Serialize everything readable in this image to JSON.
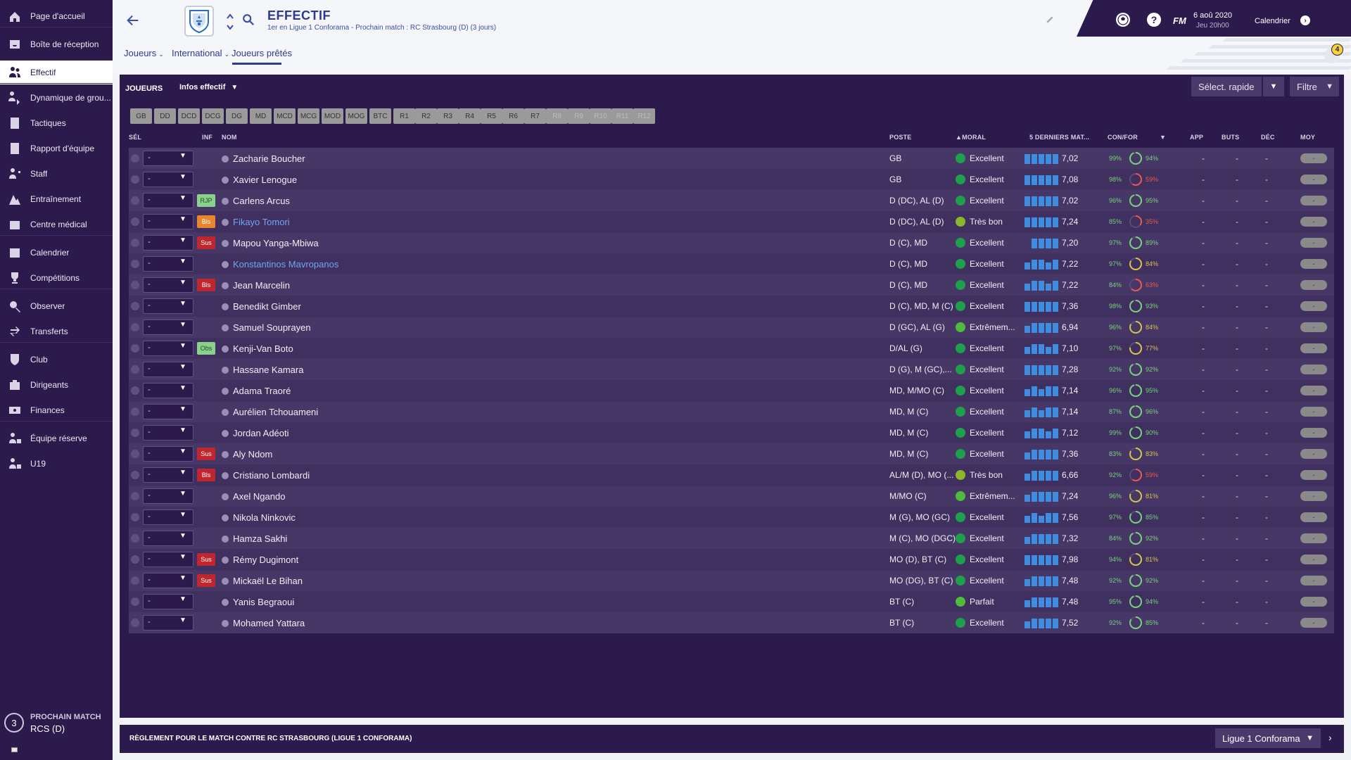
{
  "sidebar": {
    "items": [
      {
        "label": "Page d'accueil",
        "icon": "home-icon"
      },
      {
        "label": "Boîte de réception",
        "icon": "inbox-icon"
      },
      {
        "label": "Effectif",
        "icon": "squad-icon",
        "active": true
      },
      {
        "label": "Dynamique de grou...",
        "icon": "dynamics-icon"
      },
      {
        "label": "Tactiques",
        "icon": "tactics-icon"
      },
      {
        "label": "Rapport d'équipe",
        "icon": "report-icon"
      },
      {
        "label": "Staff",
        "icon": "staff-icon"
      },
      {
        "label": "Entraînement",
        "icon": "training-icon"
      },
      {
        "label": "Centre médical",
        "icon": "medical-icon"
      },
      {
        "label": "Calendrier",
        "icon": "calendar-icon"
      },
      {
        "label": "Compétitions",
        "icon": "trophy-icon"
      },
      {
        "label": "Observer",
        "icon": "scout-icon"
      },
      {
        "label": "Transferts",
        "icon": "transfers-icon"
      },
      {
        "label": "Club",
        "icon": "club-icon"
      },
      {
        "label": "Dirigeants",
        "icon": "board-icon"
      },
      {
        "label": "Finances",
        "icon": "finances-icon"
      },
      {
        "label": "Équipe réserve",
        "icon": "reserve-icon"
      },
      {
        "label": "U19",
        "icon": "u19-icon"
      }
    ],
    "next_match": {
      "count": "3",
      "label": "PROCHAIN MATCH",
      "opponent": "RCS (D)"
    }
  },
  "header": {
    "title": "EFFECTIF",
    "subtitle": "1er en Ligue 1 Conforama - Prochain match : RC Strasbourg (D) (3 jours)",
    "fm_logo": "FM",
    "date": "6 aoû 2020",
    "time": "Jeu 20h00",
    "calendar_label": "Calendrier",
    "help_label": "?",
    "notification_count": "4"
  },
  "tabs": [
    {
      "label": "Joueurs",
      "dropdown": true
    },
    {
      "label": "International",
      "dropdown": true
    },
    {
      "label": "Joueurs prêtés",
      "dropdown": false
    }
  ],
  "panel": {
    "title": "JOUEURS",
    "view": "Infos effectif",
    "quick_select": "Sélect. rapide",
    "filter": "Filtre"
  },
  "position_filters": [
    {
      "label": "GB"
    },
    {
      "label": "DD"
    },
    {
      "label": "DCD"
    },
    {
      "label": "DCG"
    },
    {
      "label": "DG"
    },
    {
      "label": "MD"
    },
    {
      "label": "MCD"
    },
    {
      "label": "MCG"
    },
    {
      "label": "MOD"
    },
    {
      "label": "MOG"
    },
    {
      "label": "BTC"
    },
    {
      "label": "R1"
    },
    {
      "label": "R2"
    },
    {
      "label": "R3"
    },
    {
      "label": "R4"
    },
    {
      "label": "R5"
    },
    {
      "label": "R6"
    },
    {
      "label": "R7"
    },
    {
      "label": "R8",
      "dim": true
    },
    {
      "label": "R9",
      "dim": true
    },
    {
      "label": "R10",
      "dim": true
    },
    {
      "label": "R11",
      "dim": true
    },
    {
      "label": "R12",
      "dim": true
    }
  ],
  "columns": {
    "sel": "SÉL",
    "inf": "INF",
    "nom": "NOM",
    "poste": "POSTE",
    "moral": "MORAL",
    "last5": "5 DERNIERS MAT...",
    "confor": "CON/FOR",
    "app": "APP",
    "buts": "BUTS",
    "dec": "DÉC",
    "moy": "MOY"
  },
  "players": [
    {
      "name": "Zacharie Boucher",
      "sel": "-",
      "inf": "",
      "pos": "GB",
      "morale": "Excellent",
      "form": [
        3,
        3,
        3,
        3,
        3
      ],
      "avg": "7,02",
      "con": "99%",
      "fit": "94%",
      "fit_val": 94,
      "app": "-",
      "buts": "-",
      "dec": "-",
      "moy": "-"
    },
    {
      "name": "Xavier Lenogue",
      "sel": "-",
      "inf": "",
      "pos": "GB",
      "morale": "Excellent",
      "form": [
        3,
        3,
        3,
        3,
        3
      ],
      "avg": "7,08",
      "con": "98%",
      "fit": "59%",
      "fit_val": 59,
      "app": "-",
      "buts": "-",
      "dec": "-",
      "moy": "-"
    },
    {
      "name": "Carlens Arcus",
      "sel": "-",
      "inf": "RJP",
      "inf_color": "green",
      "pos": "D (DC), AL (D)",
      "morale": "Excellent",
      "form": [
        3,
        3,
        3,
        3,
        3
      ],
      "avg": "7,02",
      "con": "96%",
      "fit": "95%",
      "fit_val": 95,
      "app": "-",
      "buts": "-",
      "dec": "-",
      "moy": "-"
    },
    {
      "name": "Fikayo Tomori",
      "link": true,
      "sel": "-",
      "inf": "Bls",
      "inf_color": "orange",
      "pos": "D (DC), AL (D)",
      "morale": "Très bon",
      "morale_level": "high",
      "form": [
        3,
        3,
        3,
        3,
        3
      ],
      "avg": "7,24",
      "con": "85%",
      "fit": "35%",
      "fit_val": 35,
      "app": "-",
      "buts": "-",
      "dec": "-",
      "moy": "-"
    },
    {
      "name": "Mapou Yanga-Mbiwa",
      "sel": "-",
      "inf": "Sus",
      "inf_color": "red",
      "pos": "D (C), MD",
      "morale": "Excellent",
      "form": [
        0,
        3,
        3,
        3,
        3
      ],
      "avg": "7,20",
      "con": "97%",
      "fit": "89%",
      "fit_val": 89,
      "app": "-",
      "buts": "-",
      "dec": "-",
      "moy": "-"
    },
    {
      "name": "Konstantinos Mavropanos",
      "link": true,
      "sel": "-",
      "inf": "",
      "pos": "D (C), MD",
      "morale": "Excellent",
      "form": [
        2,
        3,
        3,
        2,
        3
      ],
      "avg": "7,22",
      "con": "97%",
      "fit": "84%",
      "fit_val": 84,
      "app": "-",
      "buts": "-",
      "dec": "-",
      "moy": "-"
    },
    {
      "name": "Jean Marcelin",
      "sel": "-",
      "inf": "Bls",
      "inf_color": "red",
      "pos": "D (C), MD",
      "morale": "Excellent",
      "form": [
        2,
        3,
        3,
        2,
        3
      ],
      "avg": "7,22",
      "con": "84%",
      "fit": "63%",
      "fit_val": 63,
      "app": "-",
      "buts": "-",
      "dec": "-",
      "moy": "-"
    },
    {
      "name": "Benedikt Gimber",
      "sel": "-",
      "inf": "",
      "pos": "D (C), MD, M (C)",
      "morale": "Excellent",
      "form": [
        3,
        3,
        3,
        3,
        3
      ],
      "avg": "7,36",
      "con": "98%",
      "fit": "93%",
      "fit_val": 93,
      "app": "-",
      "buts": "-",
      "dec": "-",
      "moy": "-"
    },
    {
      "name": "Samuel Souprayen",
      "sel": "-",
      "inf": "",
      "pos": "D (GC), AL (G)",
      "morale": "Extrêmem...",
      "morale_level": "top",
      "form": [
        2,
        3,
        3,
        3,
        3
      ],
      "avg": "6,94",
      "con": "96%",
      "fit": "84%",
      "fit_val": 84,
      "app": "-",
      "buts": "-",
      "dec": "-",
      "moy": "-"
    },
    {
      "name": "Kenji-Van Boto",
      "sel": "-",
      "inf": "Obs",
      "inf_color": "green",
      "pos": "D/AL (G)",
      "morale": "Excellent",
      "form": [
        2,
        3,
        3,
        2,
        3
      ],
      "avg": "7,10",
      "con": "97%",
      "fit": "77%",
      "fit_val": 77,
      "app": "-",
      "buts": "-",
      "dec": "-",
      "moy": "-"
    },
    {
      "name": "Hassane Kamara",
      "sel": "-",
      "inf": "",
      "pos": "D (G), M (GC),...",
      "morale": "Excellent",
      "form": [
        3,
        3,
        3,
        3,
        3
      ],
      "avg": "7,28",
      "con": "92%",
      "fit": "92%",
      "fit_val": 92,
      "app": "-",
      "buts": "-",
      "dec": "-",
      "moy": "-"
    },
    {
      "name": "Adama Traoré",
      "sel": "-",
      "inf": "",
      "pos": "MD, M/MO (C)",
      "morale": "Excellent",
      "form": [
        2,
        3,
        2,
        3,
        3
      ],
      "avg": "7,14",
      "con": "96%",
      "fit": "95%",
      "fit_val": 95,
      "app": "-",
      "buts": "-",
      "dec": "-",
      "moy": "-"
    },
    {
      "name": "Aurélien Tchouameni",
      "sel": "-",
      "inf": "",
      "pos": "MD, M (C)",
      "morale": "Excellent",
      "form": [
        2,
        3,
        2,
        3,
        3
      ],
      "avg": "7,14",
      "con": "87%",
      "fit": "96%",
      "fit_val": 96,
      "app": "-",
      "buts": "-",
      "dec": "-",
      "moy": "-"
    },
    {
      "name": "Jordan Adéoti",
      "sel": "-",
      "inf": "",
      "pos": "MD, M (C)",
      "morale": "Excellent",
      "form": [
        2,
        3,
        3,
        2,
        3
      ],
      "avg": "7,12",
      "con": "99%",
      "fit": "90%",
      "fit_val": 90,
      "app": "-",
      "buts": "-",
      "dec": "-",
      "moy": "-"
    },
    {
      "name": "Aly Ndom",
      "sel": "-",
      "inf": "Sus",
      "inf_color": "red",
      "pos": "MD, M (C)",
      "morale": "Excellent",
      "form": [
        2,
        3,
        3,
        3,
        3
      ],
      "avg": "7,36",
      "con": "83%",
      "fit": "83%",
      "fit_val": 83,
      "app": "-",
      "buts": "-",
      "dec": "-",
      "moy": "-"
    },
    {
      "name": "Cristiano Lombardi",
      "sel": "-",
      "inf": "Bls",
      "inf_color": "red",
      "pos": "AL/M (D), MO (...",
      "morale": "Très bon",
      "morale_level": "high",
      "form": [
        2,
        3,
        3,
        3,
        3
      ],
      "avg": "6,66",
      "con": "92%",
      "fit": "59%",
      "fit_val": 59,
      "app": "-",
      "buts": "-",
      "dec": "-",
      "moy": "-"
    },
    {
      "name": "Axel Ngando",
      "sel": "-",
      "inf": "",
      "pos": "M/MO (C)",
      "morale": "Extrêmem...",
      "morale_level": "top",
      "form": [
        2,
        3,
        3,
        3,
        3
      ],
      "avg": "7,24",
      "con": "96%",
      "fit": "81%",
      "fit_val": 81,
      "app": "-",
      "buts": "-",
      "dec": "-",
      "moy": "-"
    },
    {
      "name": "Nikola Ninkovic",
      "sel": "-",
      "inf": "",
      "pos": "M (G), MO (GC)",
      "morale": "Excellent",
      "form": [
        2,
        3,
        2,
        3,
        3
      ],
      "avg": "7,56",
      "con": "97%",
      "fit": "85%",
      "fit_val": 85,
      "app": "-",
      "buts": "-",
      "dec": "-",
      "moy": "-"
    },
    {
      "name": "Hamza Sakhi",
      "sel": "-",
      "inf": "",
      "pos": "M (C), MO (DGC)",
      "morale": "Excellent",
      "form": [
        2,
        3,
        3,
        3,
        3
      ],
      "avg": "7,32",
      "con": "84%",
      "fit": "92%",
      "fit_val": 92,
      "app": "-",
      "buts": "-",
      "dec": "-",
      "moy": "-"
    },
    {
      "name": "Rémy Dugimont",
      "sel": "-",
      "inf": "Sus",
      "inf_color": "red",
      "pos": "MO (D), BT (C)",
      "morale": "Excellent",
      "form": [
        3,
        3,
        3,
        3,
        3
      ],
      "avg": "7,98",
      "con": "94%",
      "fit": "81%",
      "fit_val": 81,
      "app": "-",
      "buts": "-",
      "dec": "-",
      "moy": "-"
    },
    {
      "name": "Mickaël Le Bihan",
      "sel": "-",
      "inf": "Sus",
      "inf_color": "red",
      "pos": "MO (DG), BT (C)",
      "morale": "Excellent",
      "form": [
        2,
        3,
        3,
        3,
        3
      ],
      "avg": "7,48",
      "con": "92%",
      "fit": "92%",
      "fit_val": 92,
      "app": "-",
      "buts": "-",
      "dec": "-",
      "moy": "-"
    },
    {
      "name": "Yanis Begraoui",
      "sel": "-",
      "inf": "",
      "pos": "BT (C)",
      "morale": "Parfait",
      "morale_level": "top",
      "form": [
        2,
        3,
        3,
        3,
        3
      ],
      "avg": "7,48",
      "con": "95%",
      "fit": "94%",
      "fit_val": 94,
      "app": "-",
      "buts": "-",
      "dec": "-",
      "moy": "-"
    },
    {
      "name": "Mohamed Yattara",
      "sel": "-",
      "inf": "",
      "pos": "BT (C)",
      "morale": "Excellent",
      "form": [
        2,
        3,
        3,
        3,
        3
      ],
      "avg": "7,52",
      "con": "92%",
      "fit": "85%",
      "fit_val": 85,
      "app": "-",
      "buts": "-",
      "dec": "-",
      "moy": "-"
    }
  ],
  "bottom_bar": {
    "title": "RÈGLEMENT POUR LE MATCH CONTRE RC STRASBOURG (LIGUE 1 CONFORAMA)",
    "competition": "Ligue 1 Conforama"
  },
  "colors": {
    "sidebar_bg": "#2c1a4d",
    "accent": "#2f3a8c",
    "form_bar": "#3e8de0",
    "badge_red": "#c0262d",
    "badge_orange": "#e8852d",
    "badge_green": "#8bd18e"
  }
}
